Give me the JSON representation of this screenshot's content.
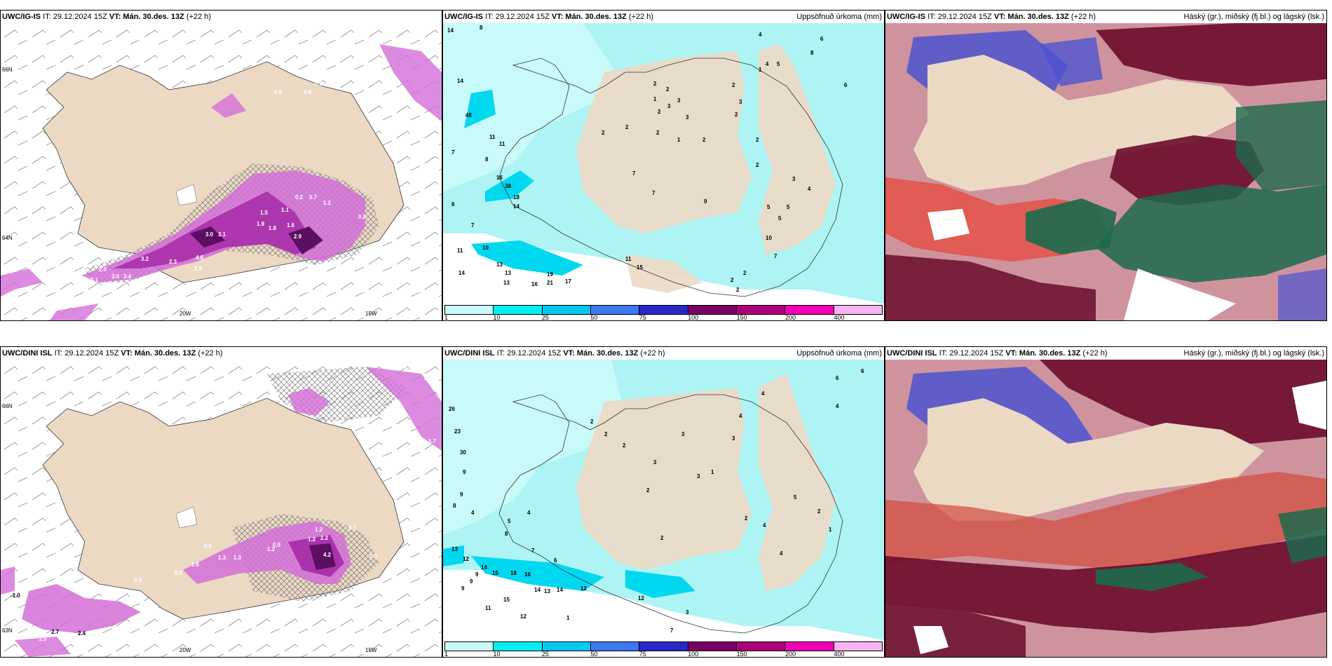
{
  "panels": [
    {
      "model": "UWC/IG-IS",
      "init": "IT: 29.12.2024 15Z",
      "valid": "VT: Mán. 30.des. 13Z",
      "lead": "(+22 h)",
      "right": ""
    },
    {
      "model": "UWC/IG-IS",
      "init": "IT: 29.12.2024 15Z",
      "valid": "VT: Mán. 30.des. 13Z",
      "lead": "(+22 h)",
      "right": "Uppsöfnuð úrkoma (mm)"
    },
    {
      "model": "UWC/IG-IS",
      "init": "IT: 29.12.2024 15Z",
      "valid": "VT: Mán. 30.des. 13Z",
      "lead": "(+22 h)",
      "right": "Háský (gr.), miðský (fj.bl.) og lágský (lsk.)"
    },
    {
      "model": "UWC/DINI ISL",
      "init": "IT: 29.12.2024 15Z",
      "valid": "VT: Mán. 30.des. 13Z",
      "lead": "(+22 h)",
      "right": ""
    },
    {
      "model": "UWC/DINI ISL",
      "init": "IT: 29.12.2024 15Z",
      "valid": "VT: Mán. 30.des. 13Z",
      "lead": "(+22 h)",
      "right": "Uppsöfnuð úrkoma (mm)"
    },
    {
      "model": "UWC/DINI ISL",
      "init": "IT: 29.12.2024 15Z",
      "valid": "VT: Mán. 30.des. 13Z",
      "lead": "(+22 h)",
      "right": "Háský (gr.), miðský (fj.bl.) og lágský (lsk.)"
    }
  ],
  "legend": {
    "ticks": [
      "1",
      "10",
      "25",
      "50",
      "75",
      "100",
      "150",
      "200",
      "400"
    ],
    "colors": [
      "#c8fafa",
      "#00f0f0",
      "#00c8f0",
      "#3c78f0",
      "#2828c8",
      "#780064",
      "#aa0078",
      "#f000b4",
      "#f8b4f0"
    ]
  },
  "axis_labels": {
    "lat66": "66N",
    "lat64": "64N",
    "lat63": "63N",
    "lon20": "20W",
    "lon15": "15W"
  },
  "precip_top": [
    "14",
    "8",
    "14",
    "4",
    "5",
    "48",
    "1",
    "4",
    "6",
    "11",
    "11",
    "7",
    "8",
    "16",
    "38",
    "18",
    "14",
    "6",
    "7",
    "11",
    "10",
    "13",
    "13",
    "16",
    "19",
    "21",
    "17",
    "14",
    "13",
    "15",
    "10",
    "11",
    "7",
    "7",
    "9",
    "2",
    "2",
    "2",
    "3",
    "3",
    "3",
    "2",
    "2",
    "1",
    "2",
    "1",
    "2",
    "2",
    "3",
    "2",
    "2",
    "2",
    "5",
    "5",
    "5",
    "4",
    "3",
    "10",
    "2",
    "2",
    "2",
    "7",
    "8",
    "6"
  ],
  "precip_bottom": [
    "26",
    "23",
    "30",
    "9",
    "9",
    "8",
    "4",
    "13",
    "12",
    "14",
    "15",
    "18",
    "16",
    "14",
    "13",
    "14",
    "12",
    "15",
    "11",
    "12",
    "9",
    "9",
    "9",
    "8",
    "7",
    "6",
    "5",
    "4",
    "2",
    "12",
    "1",
    "3",
    "7",
    "2",
    "2",
    "2",
    "2",
    "3",
    "3",
    "3",
    "1",
    "3",
    "4",
    "4",
    "6",
    "6",
    "1",
    "2",
    "5",
    "4",
    "4",
    "2",
    "4"
  ],
  "wind_top": [
    "3.0",
    "3.1",
    "1.9",
    "1.8",
    "1.6",
    "2.9",
    "3.2",
    "2.3",
    "2.0",
    "2.1",
    "3.0",
    "3.4",
    "3.7",
    "4.6",
    "2.9",
    "3.3",
    "4.3",
    "1.4",
    "1.5",
    "1.1",
    "1.1",
    "0.2",
    "0.7",
    "0.8",
    "0.4",
    "0.3",
    "0.4",
    "0.6",
    "0.8"
  ],
  "wind_bottom": [
    "1.2",
    "1.2",
    "1.3",
    "1.3",
    "0.9",
    "0.5",
    "1.6",
    "0.9",
    "2.1",
    "2.0",
    "1.5",
    "0.5",
    "1.2",
    "4.2",
    "2.2",
    "0.7",
    "0.3",
    "0.7",
    "1.7",
    "2.0",
    "2.7",
    "2.4",
    "-1.0",
    "1.3"
  ]
}
